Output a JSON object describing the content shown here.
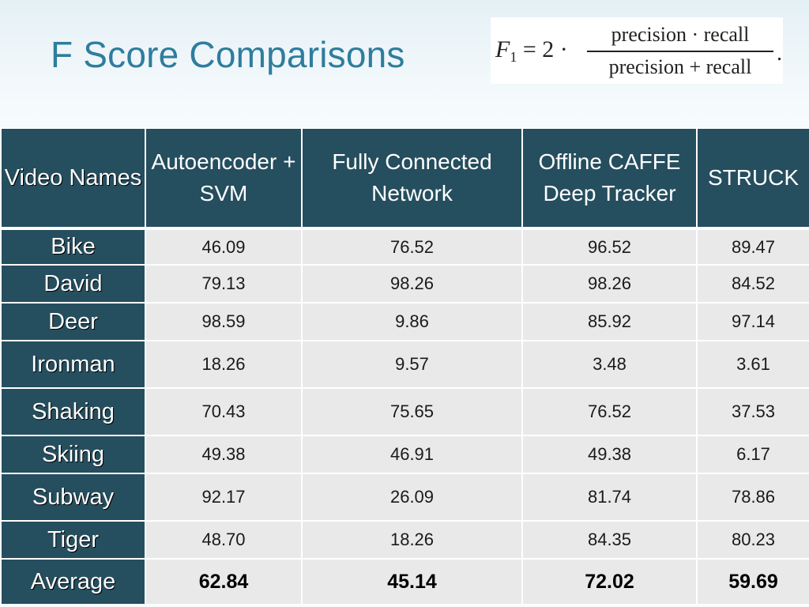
{
  "slide": {
    "title": "F Score Comparisons"
  },
  "formula": {
    "lhs_var": "F",
    "lhs_sub": "1",
    "lhs_rest": " = 2 ·",
    "numerator": "precision · recall",
    "denominator": "precision + recall",
    "trailing": "."
  },
  "table": {
    "headers": [
      "Video Names",
      "Autoencoder + SVM",
      "Fully Connected Network",
      "Offline CAFFE Deep Tracker",
      "STRUCK"
    ],
    "rows": [
      {
        "name": "Bike",
        "values": [
          "46.09",
          "76.52",
          "96.52",
          "89.47"
        ]
      },
      {
        "name": "David",
        "values": [
          "79.13",
          "98.26",
          "98.26",
          "84.52"
        ]
      },
      {
        "name": "Deer",
        "values": [
          "98.59",
          "9.86",
          "85.92",
          "97.14"
        ]
      },
      {
        "name": "Ironman",
        "values": [
          "18.26",
          "9.57",
          "3.48",
          "3.61"
        ]
      },
      {
        "name": "Shaking",
        "values": [
          "70.43",
          "75.65",
          "76.52",
          "37.53"
        ]
      },
      {
        "name": "Skiing",
        "values": [
          "49.38",
          "46.91",
          "49.38",
          "6.17"
        ]
      },
      {
        "name": "Subway",
        "values": [
          "92.17",
          "26.09",
          "81.74",
          "78.86"
        ]
      },
      {
        "name": "Tiger",
        "values": [
          "48.70",
          "18.26",
          "84.35",
          "80.23"
        ]
      },
      {
        "name": "Average",
        "values": [
          "62.84",
          "45.14",
          "72.02",
          "59.69"
        ]
      }
    ]
  },
  "colors": {
    "title": "#2e7d9e",
    "header_bg": "#254e5e",
    "cell_bg": "#e9e9ea",
    "slide_bg": "#f5fafc"
  }
}
